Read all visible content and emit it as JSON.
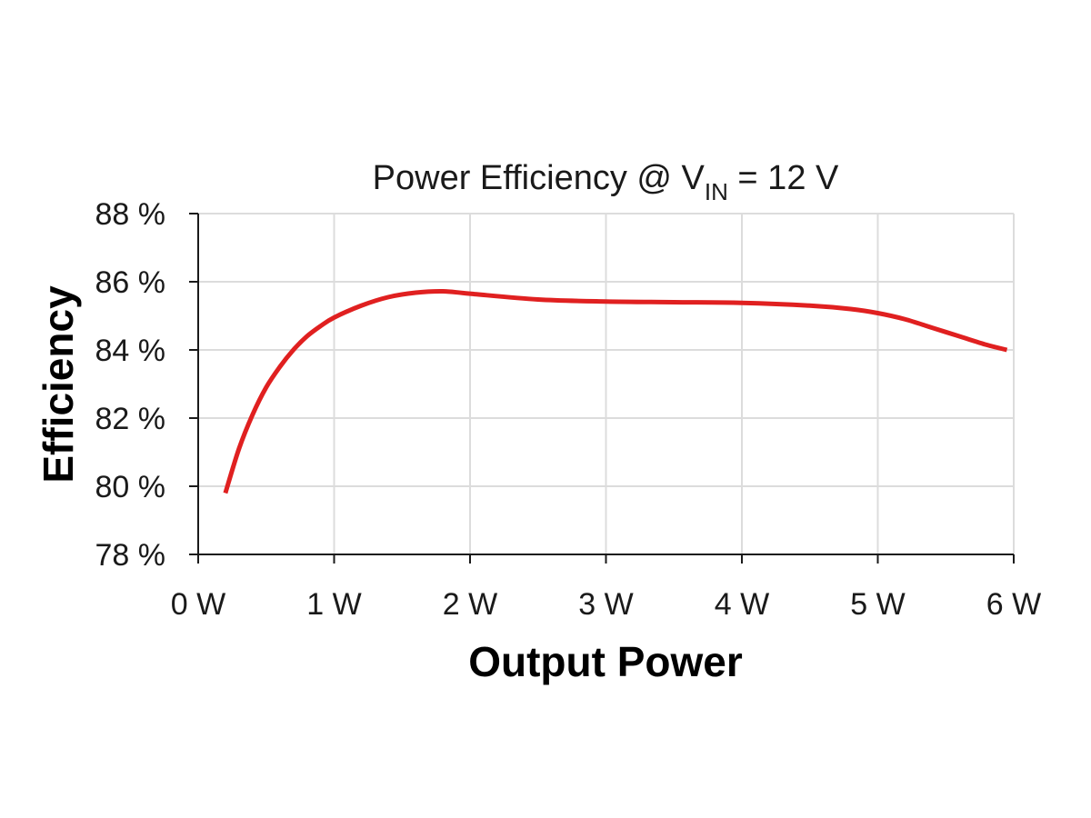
{
  "chart_data": {
    "type": "line",
    "title": "Power Efficiency @ V",
    "title_subscript": "IN",
    "title_suffix": " = 12 V",
    "xlabel": "Output Power",
    "ylabel": "Efficiency",
    "xlim": [
      0,
      6
    ],
    "ylim": [
      78,
      88
    ],
    "x_ticks": [
      0,
      1,
      2,
      3,
      4,
      5,
      6
    ],
    "x_tick_labels": [
      "0 W",
      "1 W",
      "2 W",
      "3 W",
      "4 W",
      "5 W",
      "6 W"
    ],
    "y_ticks": [
      78,
      80,
      82,
      84,
      86,
      88
    ],
    "y_tick_labels": [
      "78 %",
      "80 %",
      "82 %",
      "84 %",
      "86 %",
      "88 %"
    ],
    "grid": true,
    "series": [
      {
        "color": "#e02020",
        "x": [
          0.2,
          0.3,
          0.4,
          0.5,
          0.6,
          0.7,
          0.8,
          0.9,
          1.0,
          1.2,
          1.4,
          1.6,
          1.8,
          2.0,
          2.5,
          3.0,
          3.5,
          4.0,
          4.5,
          4.8,
          5.0,
          5.2,
          5.4,
          5.6,
          5.8,
          5.95
        ],
        "y": [
          79.8,
          81.1,
          82.1,
          82.9,
          83.5,
          84.0,
          84.4,
          84.7,
          84.95,
          85.3,
          85.55,
          85.68,
          85.72,
          85.65,
          85.48,
          85.42,
          85.4,
          85.38,
          85.3,
          85.2,
          85.08,
          84.9,
          84.65,
          84.4,
          84.15,
          84.0
        ]
      }
    ]
  }
}
